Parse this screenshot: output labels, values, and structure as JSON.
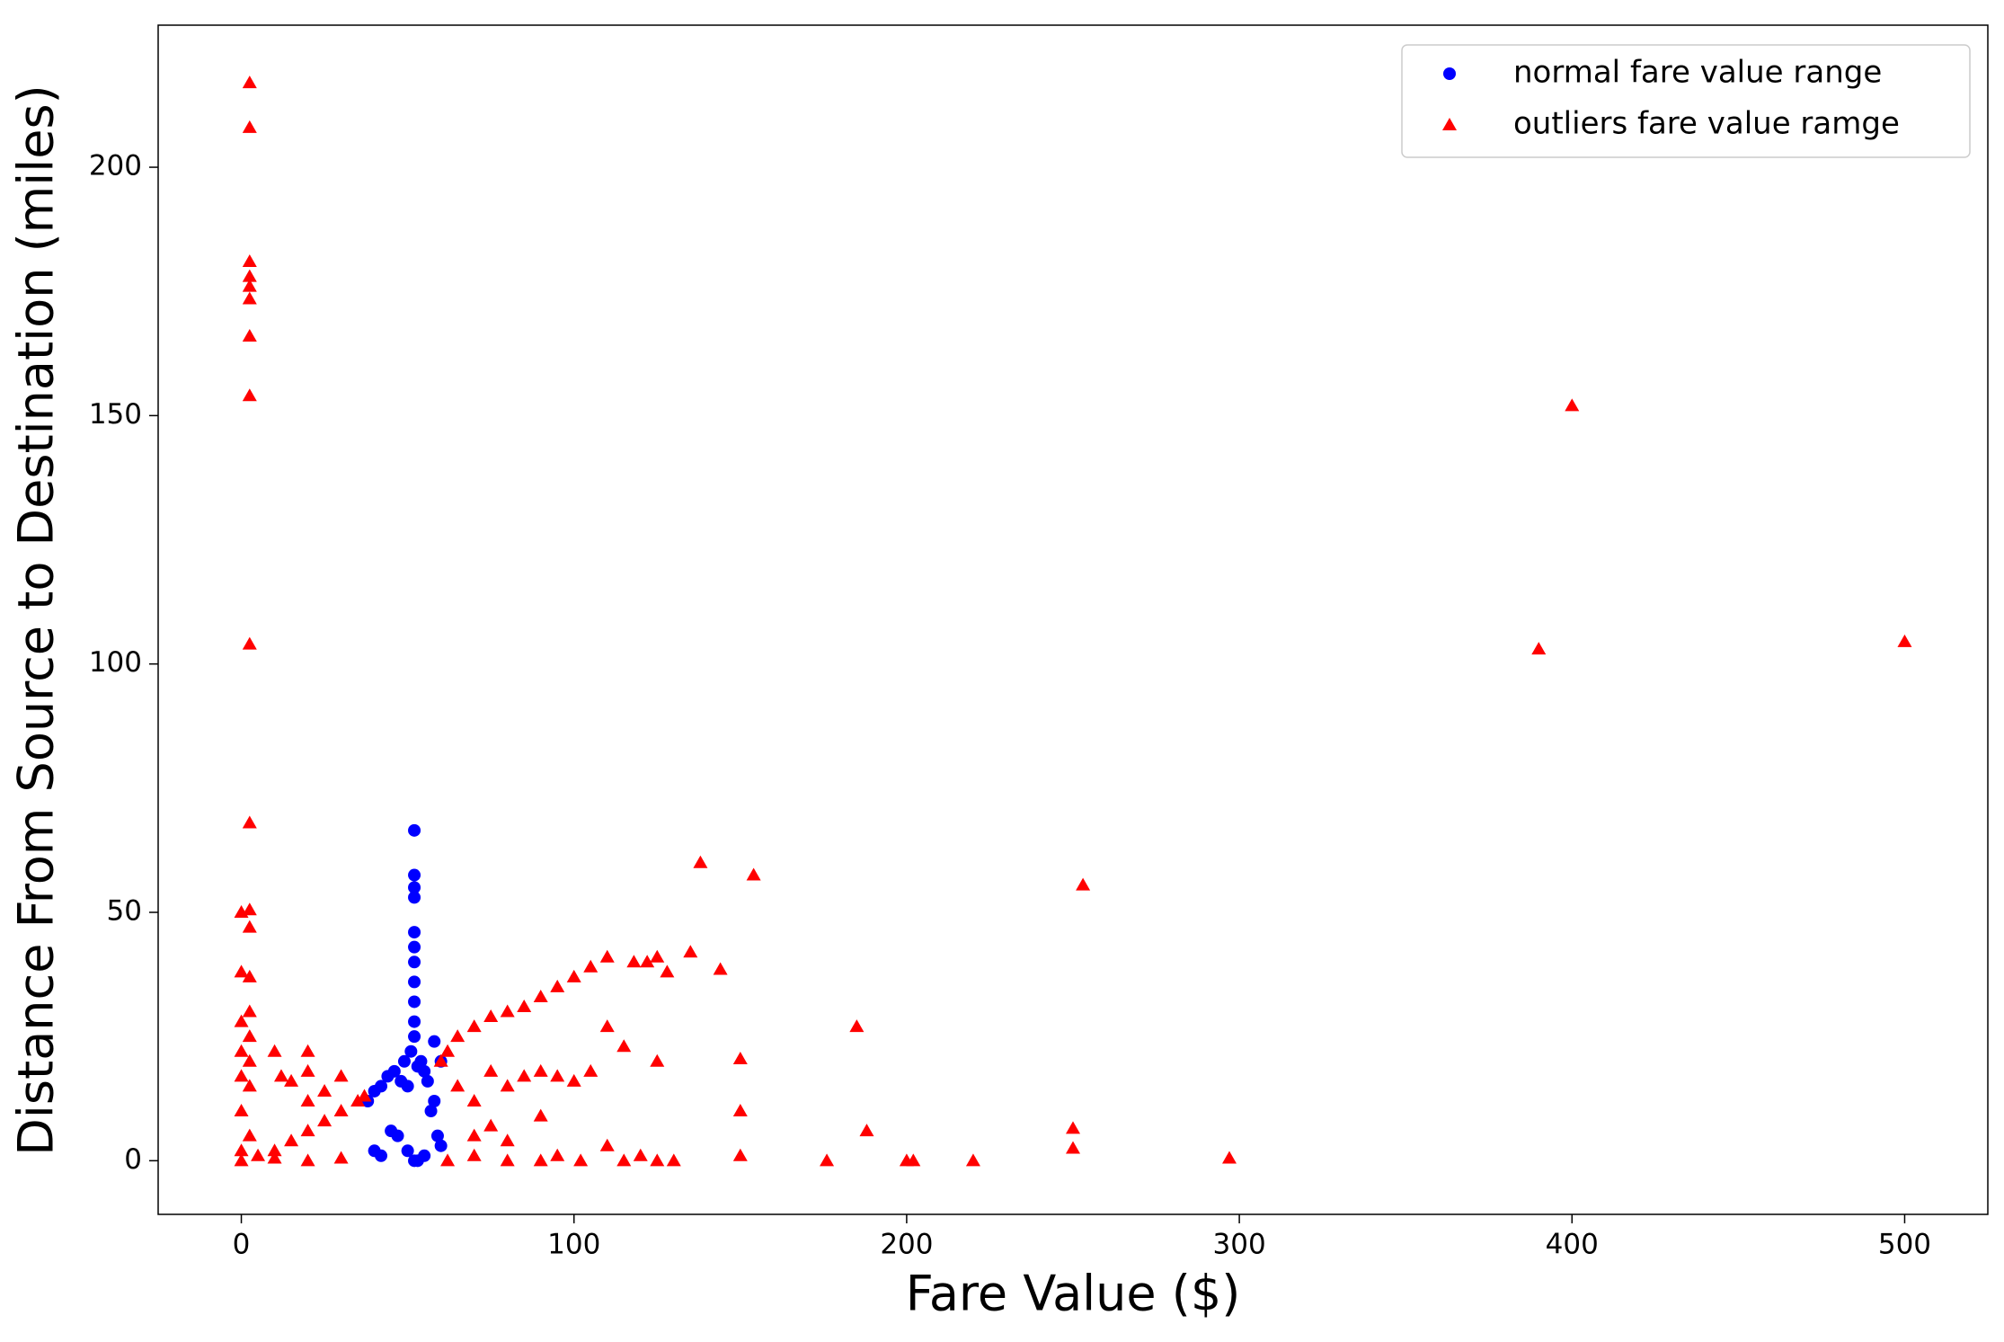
{
  "chart_data": {
    "type": "scatter",
    "x_label": "Fare Value ($)",
    "y_label": "Distance From Source to Destination (miles)",
    "xlim": [
      -25,
      525
    ],
    "ylim": [
      -10.8,
      228.6
    ],
    "xticks": [
      0,
      100,
      200,
      300,
      400,
      500
    ],
    "yticks": [
      0,
      50,
      100,
      150,
      200
    ],
    "grid": false,
    "legend": "upper right",
    "series": [
      {
        "name": "normal fare value range",
        "color": "#0000ff",
        "marker": "circle",
        "x": [
          52,
          52,
          52,
          52,
          52,
          52,
          52,
          52,
          52,
          52,
          52,
          40,
          42,
          45,
          47,
          50,
          53,
          55,
          58,
          60,
          44,
          48,
          50,
          55,
          57,
          59,
          38,
          40,
          42,
          46,
          49,
          54,
          56,
          58,
          60,
          52,
          51,
          53
        ],
        "values": [
          66.5,
          57.5,
          55,
          53,
          46,
          43,
          40,
          36,
          32,
          28,
          25,
          2,
          1,
          6,
          5,
          2,
          0,
          1,
          24,
          20,
          17,
          16,
          15,
          18,
          10,
          5,
          12,
          14,
          15,
          18,
          20,
          20,
          16,
          12,
          3,
          0,
          22,
          19
        ]
      },
      {
        "name": "outliers fare value ramge",
        "color": "#ff0000",
        "marker": "triangle",
        "x": [
          2.5,
          2.5,
          2.5,
          2.5,
          2.5,
          2.5,
          2.5,
          2.5,
          2.5,
          2.5,
          0,
          2.5,
          2.5,
          0,
          2.5,
          2.5,
          0,
          2.5,
          0,
          2.5,
          0,
          2.5,
          0,
          2.5,
          0,
          0,
          5,
          10,
          15,
          20,
          25,
          30,
          35,
          37,
          10,
          20,
          30,
          10,
          12,
          15,
          20,
          20,
          20,
          25,
          30,
          60,
          62,
          65,
          70,
          75,
          80,
          85,
          90,
          95,
          100,
          105,
          110,
          118,
          122,
          125,
          128,
          135,
          144,
          65,
          70,
          75,
          80,
          85,
          90,
          95,
          100,
          105,
          110,
          115,
          125,
          62,
          70,
          80,
          90,
          95,
          102,
          110,
          115,
          120,
          125,
          130,
          70,
          75,
          80,
          90,
          138,
          154,
          185,
          188,
          176,
          200,
          202,
          220,
          250,
          250,
          253,
          297,
          150,
          150,
          150,
          390,
          400,
          500
        ],
        "values": [
          217,
          208,
          181,
          178,
          176,
          173.5,
          166,
          154,
          104,
          68,
          50,
          50.5,
          47,
          38,
          37,
          30,
          28,
          25,
          22,
          20,
          17,
          15,
          10,
          5,
          2,
          0,
          1,
          2,
          4,
          6,
          8,
          10,
          12,
          13,
          0.5,
          0,
          0.5,
          22,
          17,
          16,
          22,
          18,
          12,
          14,
          17,
          20,
          22,
          25,
          27,
          29,
          30,
          31,
          33,
          35,
          37,
          39,
          41,
          40,
          40,
          41,
          38,
          42,
          38.5,
          15,
          12,
          18,
          15,
          17,
          18,
          17,
          16,
          18,
          27,
          23,
          20,
          0,
          1,
          0,
          0,
          1,
          0,
          3,
          0,
          1,
          0,
          0,
          5,
          7,
          4,
          9,
          60,
          57.5,
          27,
          6,
          0,
          0,
          0,
          0,
          6.5,
          2.5,
          55.5,
          0.5,
          20.5,
          10,
          1,
          103,
          152,
          104.5
        ]
      }
    ]
  }
}
